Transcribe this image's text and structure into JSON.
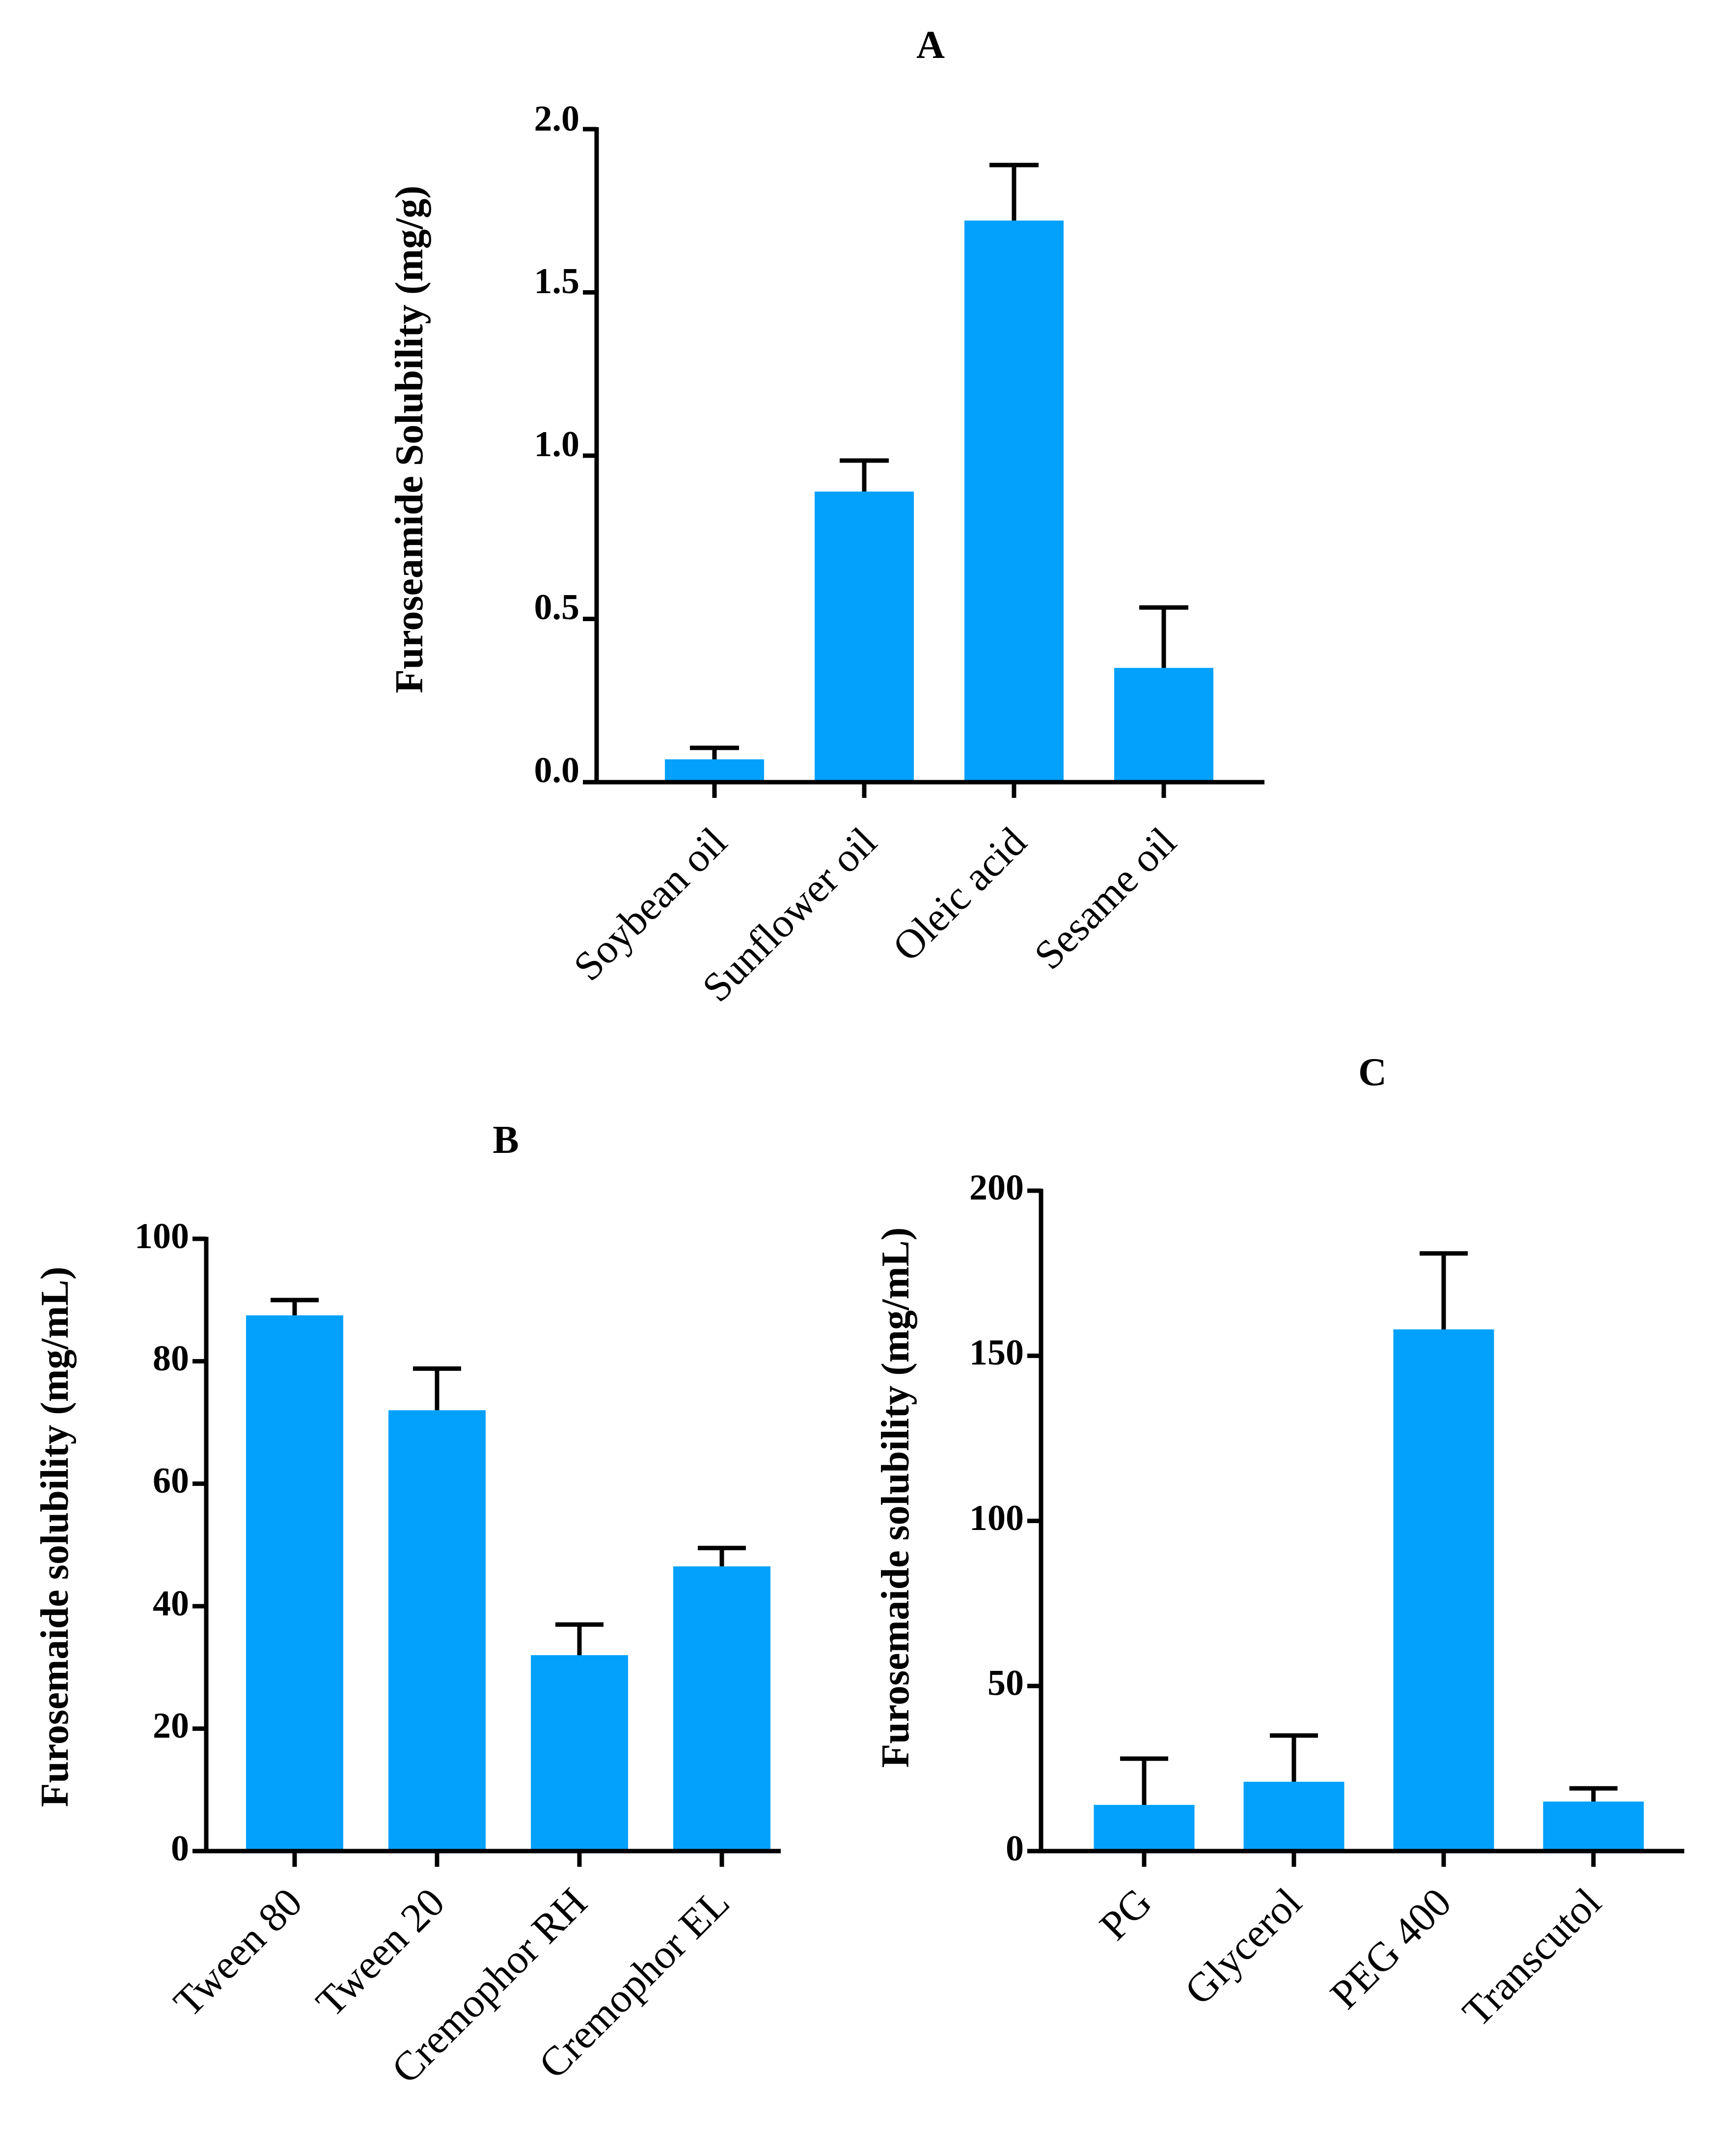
{
  "figure": {
    "background": "#ffffff",
    "bar_color": "#03A1FC"
  },
  "chart_data": [
    {
      "id": "A",
      "type": "bar",
      "title": "A",
      "xlabel": "",
      "ylabel": "Furoseamide Solubility (mg/g)",
      "ylim": [
        0,
        2.0
      ],
      "yticks": [
        0.0,
        0.5,
        1.0,
        1.5,
        2.0
      ],
      "ytick_labels": [
        "0.0",
        "0.5",
        "1.0",
        "1.5",
        "2.0"
      ],
      "categories": [
        "Soybean oil",
        "Sunflower oil",
        "Oleic acid",
        "Sesame oil"
      ],
      "values": [
        0.07,
        0.89,
        1.72,
        0.35
      ],
      "errors": [
        0.035,
        0.095,
        0.17,
        0.185
      ]
    },
    {
      "id": "B",
      "type": "bar",
      "title": "B",
      "xlabel": "",
      "ylabel": "Furosemaide solubility (mg/mL)",
      "ylim": [
        0,
        100
      ],
      "yticks": [
        0,
        20,
        40,
        60,
        80,
        100
      ],
      "ytick_labels": [
        "0",
        "20",
        "40",
        "60",
        "80",
        "100"
      ],
      "categories": [
        "Tween 80",
        "Tween 20",
        "Cremophor RH",
        "Cremophor EL"
      ],
      "values": [
        87.5,
        72,
        32,
        46.5
      ],
      "errors": [
        2.5,
        6.8,
        5.0,
        3.0
      ]
    },
    {
      "id": "C",
      "type": "bar",
      "title": "C",
      "xlabel": "",
      "ylabel": "Furosemaide solubility (mg/mL)",
      "ylim": [
        0,
        200
      ],
      "yticks": [
        0,
        50,
        100,
        150,
        200
      ],
      "ytick_labels": [
        "0",
        "50",
        "100",
        "150",
        "200"
      ],
      "categories": [
        "PG",
        "Glycerol",
        "PEG 400",
        "Transcutol"
      ],
      "values": [
        14,
        21,
        158,
        15
      ],
      "errors": [
        14,
        14,
        23,
        4
      ]
    }
  ]
}
